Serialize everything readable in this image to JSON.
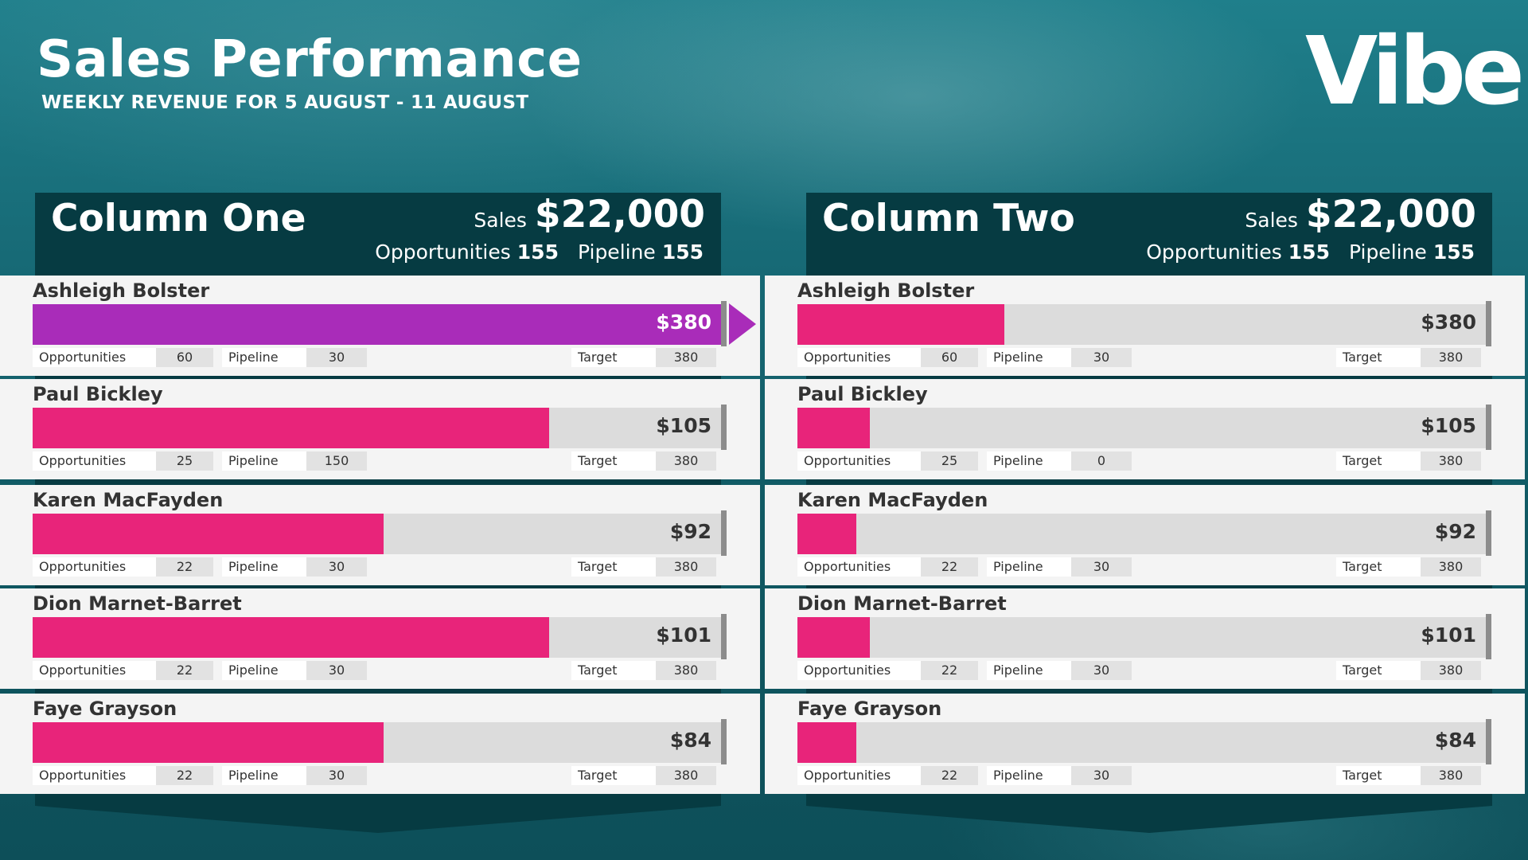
{
  "header": {
    "title": "Sales Performance",
    "subtitle": "WEEKLY REVENUE FOR 5 AUGUST - 11 AUGUST",
    "logo_text": "Vibe"
  },
  "colors": {
    "fill_default": "#e8247a",
    "fill_top": "#a92cb9",
    "track": "#dcdcdc",
    "panel_dark": "#063b42",
    "background": "#176a76"
  },
  "columns": [
    {
      "name": "Column One",
      "sales_label": "Sales",
      "sales_value": "$22,000",
      "opportunities_label": "Opportunities",
      "opportunities_value": "155",
      "pipeline_label": "Pipeline",
      "pipeline_value": "155",
      "rows": [
        {
          "name": "Ashleigh Bolster",
          "amount": "$380",
          "progress": 1.0,
          "opportunities": "60",
          "pipeline": "30",
          "target": "380",
          "highlight": true
        },
        {
          "name": "Paul Bickley",
          "amount": "$105",
          "progress": 0.75,
          "opportunities": "25",
          "pipeline": "150",
          "target": "380",
          "highlight": false
        },
        {
          "name": "Karen MacFayden",
          "amount": "$92",
          "progress": 0.51,
          "opportunities": "22",
          "pipeline": "30",
          "target": "380",
          "highlight": false
        },
        {
          "name": "Dion Marnet-Barret",
          "amount": "$101",
          "progress": 0.75,
          "opportunities": "22",
          "pipeline": "30",
          "target": "380",
          "highlight": false
        },
        {
          "name": "Faye Grayson",
          "amount": "$84",
          "progress": 0.51,
          "opportunities": "22",
          "pipeline": "30",
          "target": "380",
          "highlight": false
        }
      ]
    },
    {
      "name": "Column Two",
      "sales_label": "Sales",
      "sales_value": "$22,000",
      "opportunities_label": "Opportunities",
      "opportunities_value": "155",
      "pipeline_label": "Pipeline",
      "pipeline_value": "155",
      "rows": [
        {
          "name": "Ashleigh Bolster",
          "amount": "$380",
          "progress": 0.3,
          "opportunities": "60",
          "pipeline": "30",
          "target": "380",
          "highlight": false
        },
        {
          "name": "Paul Bickley",
          "amount": "$105",
          "progress": 0.105,
          "opportunities": "25",
          "pipeline": "0",
          "target": "380",
          "highlight": false
        },
        {
          "name": "Karen MacFayden",
          "amount": "$92",
          "progress": 0.085,
          "opportunities": "22",
          "pipeline": "30",
          "target": "380",
          "highlight": false
        },
        {
          "name": "Dion Marnet-Barret",
          "amount": "$101",
          "progress": 0.105,
          "opportunities": "22",
          "pipeline": "30",
          "target": "380",
          "highlight": false
        },
        {
          "name": "Faye Grayson",
          "amount": "$84",
          "progress": 0.085,
          "opportunities": "22",
          "pipeline": "30",
          "target": "380",
          "highlight": false
        }
      ]
    }
  ],
  "labels": {
    "opportunities": "Opportunities",
    "pipeline": "Pipeline",
    "target": "Target"
  }
}
